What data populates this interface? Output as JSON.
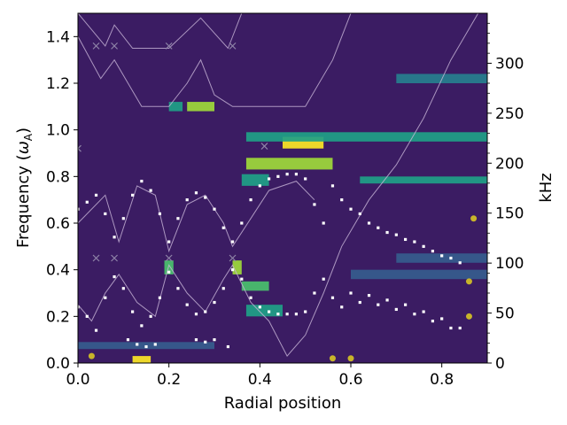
{
  "chart_data": {
    "type": "heatmap",
    "xlabel": "Radial position",
    "ylabel_parts": [
      "Frequency (",
      "ω",
      "A",
      ")"
    ],
    "y2label": "kHz",
    "xlim": [
      0,
      0.9
    ],
    "ylim": [
      0,
      1.5
    ],
    "y2lim": [
      0,
      350
    ],
    "x_ticks": [
      0.0,
      0.2,
      0.4,
      0.6,
      0.8
    ],
    "x_tick_labels": [
      "0.0",
      "0.2",
      "0.4",
      "0.6",
      "0.8"
    ],
    "y_ticks": [
      0.0,
      0.2,
      0.4,
      0.6,
      0.8,
      1.0,
      1.2,
      1.4
    ],
    "y_tick_labels": [
      "0.0",
      "0.2",
      "0.4",
      "0.6",
      "0.8",
      "1.0",
      "1.2",
      "1.4"
    ],
    "y2_ticks": [
      0,
      50,
      100,
      150,
      200,
      250,
      300
    ],
    "y2_tick_labels": [
      "0",
      "50",
      "100",
      "150",
      "200",
      "250",
      "300"
    ],
    "colormap": "viridis",
    "background_color": "#3b1c63",
    "hot_spots": [
      {
        "x": [
          0.45,
          0.54
        ],
        "y": [
          0.92,
          0.97
        ],
        "level": 1.0
      },
      {
        "x": [
          0.37,
          0.56
        ],
        "y": [
          0.83,
          0.88
        ],
        "level": 0.8
      },
      {
        "x": [
          0.36,
          0.42
        ],
        "y": [
          0.76,
          0.81
        ],
        "level": 0.6
      },
      {
        "x": [
          0.12,
          0.16
        ],
        "y": [
          0.0,
          0.03
        ],
        "level": 1.0
      },
      {
        "x": [
          0.34,
          0.36
        ],
        "y": [
          0.38,
          0.44
        ],
        "level": 0.9
      },
      {
        "x": [
          0.19,
          0.21
        ],
        "y": [
          0.38,
          0.44
        ],
        "level": 0.7
      },
      {
        "x": [
          0.37,
          0.45
        ],
        "y": [
          0.2,
          0.25
        ],
        "level": 0.6
      },
      {
        "x": [
          0.36,
          0.42
        ],
        "y": [
          0.31,
          0.35
        ],
        "level": 0.7
      },
      {
        "x": [
          0.37,
          0.9
        ],
        "y": [
          0.95,
          0.99
        ],
        "level": 0.55
      },
      {
        "x": [
          0.62,
          0.9
        ],
        "y": [
          0.77,
          0.8
        ],
        "level": 0.55
      },
      {
        "x": [
          0.24,
          0.3
        ],
        "y": [
          1.08,
          1.12
        ],
        "level": 0.8
      },
      {
        "x": [
          0.2,
          0.23
        ],
        "y": [
          1.08,
          1.12
        ],
        "level": 0.5
      },
      {
        "x": [
          0.7,
          0.9
        ],
        "y": [
          1.2,
          1.24
        ],
        "level": 0.4
      },
      {
        "x": [
          0.7,
          0.9
        ],
        "y": [
          0.43,
          0.47
        ],
        "level": 0.35
      },
      {
        "x": [
          0.6,
          0.9
        ],
        "y": [
          0.36,
          0.4
        ],
        "level": 0.3
      },
      {
        "x": [
          0.0,
          0.3
        ],
        "y": [
          0.06,
          0.09
        ],
        "level": 0.35
      }
    ],
    "series": [
      {
        "kind": "upper-band",
        "points": [
          [
            0.0,
            0.66
          ],
          [
            0.02,
            0.69
          ],
          [
            0.04,
            0.72
          ],
          [
            0.06,
            0.64
          ],
          [
            0.08,
            0.54
          ],
          [
            0.1,
            0.62
          ],
          [
            0.12,
            0.72
          ],
          [
            0.14,
            0.78
          ],
          [
            0.16,
            0.74
          ],
          [
            0.18,
            0.64
          ],
          [
            0.2,
            0.52
          ],
          [
            0.22,
            0.62
          ],
          [
            0.24,
            0.7
          ],
          [
            0.26,
            0.73
          ],
          [
            0.28,
            0.71
          ],
          [
            0.3,
            0.66
          ],
          [
            0.32,
            0.58
          ],
          [
            0.34,
            0.52
          ],
          [
            0.36,
            0.6
          ],
          [
            0.38,
            0.7
          ],
          [
            0.4,
            0.76
          ],
          [
            0.42,
            0.79
          ],
          [
            0.44,
            0.8
          ],
          [
            0.46,
            0.81
          ],
          [
            0.48,
            0.81
          ],
          [
            0.5,
            0.79
          ],
          [
            0.52,
            0.68
          ],
          [
            0.54,
            0.6
          ],
          [
            0.56,
            0.76
          ],
          [
            0.58,
            0.7
          ],
          [
            0.6,
            0.66
          ],
          [
            0.62,
            0.64
          ],
          [
            0.64,
            0.6
          ],
          [
            0.66,
            0.58
          ],
          [
            0.68,
            0.56
          ],
          [
            0.7,
            0.55
          ],
          [
            0.72,
            0.53
          ],
          [
            0.74,
            0.52
          ],
          [
            0.76,
            0.5
          ],
          [
            0.78,
            0.48
          ],
          [
            0.8,
            0.46
          ],
          [
            0.82,
            0.45
          ],
          [
            0.84,
            0.43
          ]
        ]
      },
      {
        "kind": "lower-band",
        "points": [
          [
            0.0,
            0.24
          ],
          [
            0.02,
            0.2
          ],
          [
            0.04,
            0.14
          ],
          [
            0.06,
            0.28
          ],
          [
            0.08,
            0.37
          ],
          [
            0.1,
            0.32
          ],
          [
            0.12,
            0.22
          ],
          [
            0.14,
            0.16
          ],
          [
            0.16,
            0.2
          ],
          [
            0.18,
            0.28
          ],
          [
            0.2,
            0.39
          ],
          [
            0.22,
            0.32
          ],
          [
            0.24,
            0.25
          ],
          [
            0.26,
            0.21
          ],
          [
            0.28,
            0.22
          ],
          [
            0.3,
            0.26
          ],
          [
            0.32,
            0.32
          ],
          [
            0.34,
            0.4
          ],
          [
            0.36,
            0.36
          ],
          [
            0.38,
            0.28
          ],
          [
            0.4,
            0.24
          ],
          [
            0.42,
            0.22
          ],
          [
            0.44,
            0.21
          ],
          [
            0.46,
            0.21
          ],
          [
            0.48,
            0.21
          ],
          [
            0.5,
            0.22
          ],
          [
            0.52,
            0.3
          ],
          [
            0.54,
            0.36
          ],
          [
            0.56,
            0.28
          ],
          [
            0.58,
            0.24
          ],
          [
            0.6,
            0.3
          ],
          [
            0.62,
            0.26
          ],
          [
            0.64,
            0.29
          ],
          [
            0.66,
            0.25
          ],
          [
            0.68,
            0.27
          ],
          [
            0.7,
            0.23
          ],
          [
            0.72,
            0.25
          ],
          [
            0.74,
            0.21
          ],
          [
            0.76,
            0.22
          ],
          [
            0.78,
            0.18
          ],
          [
            0.8,
            0.19
          ],
          [
            0.82,
            0.15
          ],
          [
            0.84,
            0.15
          ]
        ]
      },
      {
        "kind": "lowest-band",
        "points": [
          [
            0.11,
            0.1
          ],
          [
            0.13,
            0.08
          ],
          [
            0.15,
            0.07
          ],
          [
            0.17,
            0.08
          ],
          [
            0.26,
            0.1
          ],
          [
            0.28,
            0.09
          ],
          [
            0.3,
            0.1
          ],
          [
            0.33,
            0.07
          ]
        ]
      }
    ],
    "yellow_points": [
      [
        0.03,
        0.03
      ],
      [
        0.56,
        0.02
      ],
      [
        0.6,
        0.02
      ],
      [
        0.86,
        0.2
      ],
      [
        0.86,
        0.35
      ],
      [
        0.87,
        0.62
      ]
    ],
    "cross_markers": [
      [
        0.04,
        1.36
      ],
      [
        0.08,
        1.36
      ],
      [
        0.2,
        1.36
      ],
      [
        0.34,
        1.36
      ],
      [
        0.04,
        0.45
      ],
      [
        0.08,
        0.45
      ],
      [
        0.2,
        0.45
      ],
      [
        0.34,
        0.45
      ],
      [
        0.41,
        0.93
      ],
      [
        0.0,
        0.92
      ]
    ],
    "curves": [
      [
        [
          0.0,
          1.4
        ],
        [
          0.05,
          1.22
        ],
        [
          0.08,
          1.3
        ],
        [
          0.11,
          1.2
        ],
        [
          0.14,
          1.1
        ],
        [
          0.2,
          1.1
        ],
        [
          0.24,
          1.2
        ],
        [
          0.27,
          1.3
        ],
        [
          0.3,
          1.15
        ],
        [
          0.34,
          1.1
        ],
        [
          0.5,
          1.1
        ],
        [
          0.56,
          1.3
        ],
        [
          0.6,
          1.5
        ]
      ],
      [
        [
          0.0,
          1.5
        ],
        [
          0.06,
          1.36
        ],
        [
          0.08,
          1.45
        ],
        [
          0.12,
          1.35
        ],
        [
          0.2,
          1.35
        ],
        [
          0.27,
          1.48
        ],
        [
          0.33,
          1.35
        ],
        [
          0.36,
          1.5
        ]
      ],
      [
        [
          0.0,
          0.6
        ],
        [
          0.06,
          0.72
        ],
        [
          0.09,
          0.52
        ],
        [
          0.13,
          0.76
        ],
        [
          0.17,
          0.72
        ],
        [
          0.2,
          0.48
        ],
        [
          0.24,
          0.68
        ],
        [
          0.28,
          0.72
        ],
        [
          0.32,
          0.6
        ],
        [
          0.34,
          0.5
        ],
        [
          0.38,
          0.62
        ],
        [
          0.42,
          0.74
        ],
        [
          0.48,
          0.78
        ],
        [
          0.52,
          0.7
        ]
      ],
      [
        [
          0.0,
          0.25
        ],
        [
          0.03,
          0.18
        ],
        [
          0.06,
          0.3
        ],
        [
          0.09,
          0.38
        ],
        [
          0.13,
          0.26
        ],
        [
          0.17,
          0.2
        ],
        [
          0.2,
          0.42
        ],
        [
          0.24,
          0.3
        ],
        [
          0.28,
          0.22
        ],
        [
          0.32,
          0.36
        ],
        [
          0.34,
          0.42
        ],
        [
          0.38,
          0.26
        ],
        [
          0.42,
          0.18
        ],
        [
          0.46,
          0.03
        ],
        [
          0.5,
          0.12
        ],
        [
          0.54,
          0.3
        ],
        [
          0.58,
          0.5
        ],
        [
          0.64,
          0.7
        ],
        [
          0.7,
          0.85
        ],
        [
          0.76,
          1.05
        ],
        [
          0.82,
          1.3
        ],
        [
          0.88,
          1.5
        ]
      ]
    ]
  }
}
